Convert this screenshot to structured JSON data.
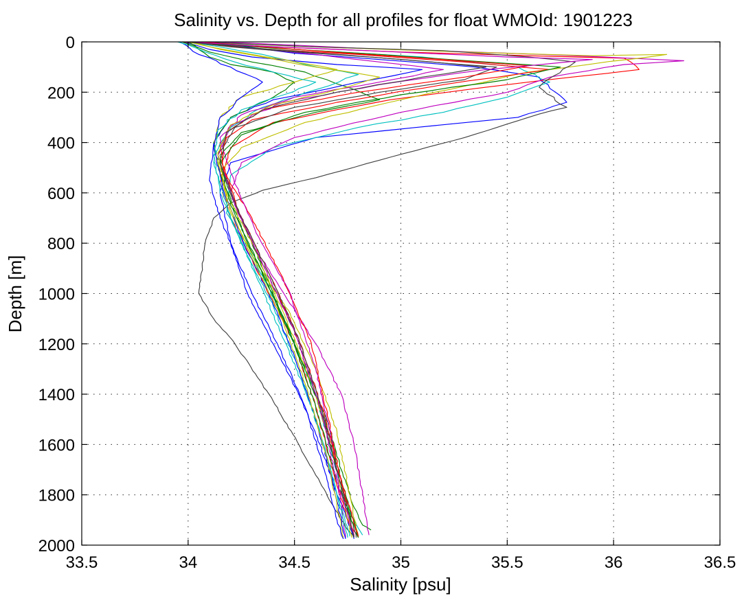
{
  "chart_data": {
    "type": "line",
    "title": "Salinity vs. Depth for all profiles for float WMOId: 1901223",
    "xlabel": "Salinity [psu]",
    "ylabel": "Depth [m]",
    "xlim": [
      33.5,
      36.5
    ],
    "ylim": [
      0,
      2000
    ],
    "y_reversed": true,
    "grid": true,
    "xticks": [
      "33.5",
      "34",
      "34.5",
      "35",
      "35.5",
      "36",
      "36.5"
    ],
    "yticks": [
      "0",
      "200",
      "400",
      "600",
      "800",
      "1000",
      "1200",
      "1400",
      "1600",
      "1800",
      "2000"
    ],
    "series_colors": [
      "#0000ff",
      "#008000",
      "#ff0000",
      "#00bfbf",
      "#bf00bf",
      "#bfbf00",
      "#404040"
    ],
    "series": [
      {
        "x": [
          34.0,
          34.28,
          34.5,
          34.9,
          35.35,
          35.65,
          35.7,
          35.78,
          35.55,
          34.6,
          34.2,
          34.15,
          34.2,
          34.28,
          34.4,
          34.52,
          34.62,
          34.7,
          34.75,
          34.78
        ],
        "y": [
          0,
          20,
          45,
          70,
          100,
          140,
          185,
          240,
          300,
          380,
          480,
          600,
          800,
          1000,
          1200,
          1400,
          1600,
          1800,
          1900,
          1975
        ]
      },
      {
        "x": [
          33.97,
          34.1,
          34.3,
          34.55,
          34.75,
          34.9,
          34.6,
          34.25,
          34.15,
          34.18,
          34.25,
          34.35,
          34.45,
          34.55,
          34.65,
          34.72,
          34.78,
          34.82,
          34.86
        ],
        "y": [
          0,
          40,
          80,
          120,
          180,
          230,
          280,
          360,
          450,
          560,
          700,
          900,
          1100,
          1300,
          1500,
          1700,
          1850,
          1920,
          1940
        ]
      },
      {
        "x": [
          34.0,
          34.4,
          35.0,
          35.6,
          36.05,
          36.12,
          35.5,
          34.95,
          34.4,
          34.2,
          34.15,
          34.2,
          34.35,
          34.5,
          34.6,
          34.68,
          34.75,
          34.8
        ],
        "y": [
          0,
          20,
          40,
          55,
          65,
          110,
          170,
          230,
          320,
          420,
          560,
          700,
          950,
          1200,
          1450,
          1700,
          1900,
          1970
        ]
      },
      {
        "x": [
          34.1,
          34.5,
          35.1,
          35.55,
          35.7,
          35.5,
          35.2,
          34.8,
          34.4,
          34.2,
          34.18,
          34.3,
          34.45,
          34.6,
          34.68,
          34.75,
          34.82
        ],
        "y": [
          0,
          30,
          60,
          100,
          160,
          220,
          280,
          340,
          420,
          530,
          680,
          850,
          1100,
          1400,
          1650,
          1850,
          1960
        ]
      },
      {
        "x": [
          34.15,
          34.8,
          35.5,
          35.95,
          36.33,
          36.05,
          35.7,
          35.5,
          35.0,
          34.5,
          34.25,
          34.2,
          34.3,
          34.45,
          34.6,
          34.72,
          34.78,
          34.82,
          34.85
        ],
        "y": [
          0,
          25,
          45,
          60,
          75,
          90,
          140,
          200,
          280,
          380,
          480,
          600,
          800,
          1000,
          1200,
          1400,
          1600,
          1800,
          1960
        ]
      },
      {
        "x": [
          34.0,
          34.6,
          35.3,
          35.9,
          36.25,
          35.6,
          35.0,
          34.55,
          34.25,
          34.15,
          34.2,
          34.32,
          34.48,
          34.6,
          34.7,
          34.76,
          34.8
        ],
        "y": [
          0,
          20,
          40,
          55,
          50,
          120,
          230,
          320,
          420,
          520,
          680,
          880,
          1080,
          1300,
          1550,
          1800,
          1970
        ]
      },
      {
        "x": [
          34.05,
          34.6,
          35.2,
          35.6,
          35.82,
          35.65,
          35.78,
          35.6,
          35.3,
          34.9,
          34.6,
          34.35,
          34.2,
          34.12,
          34.08,
          34.05,
          34.12,
          34.22,
          34.38,
          34.52,
          34.62,
          34.72,
          34.78
        ],
        "y": [
          0,
          20,
          35,
          60,
          80,
          180,
          260,
          300,
          380,
          470,
          540,
          590,
          640,
          700,
          800,
          1000,
          1100,
          1200,
          1400,
          1600,
          1750,
          1900,
          1970
        ]
      },
      {
        "x": [
          33.98,
          34.1,
          34.3,
          34.7,
          35.1,
          34.8,
          34.4,
          34.2,
          34.12,
          34.1,
          34.15,
          34.3,
          34.42,
          34.55,
          34.64,
          34.7,
          34.73
        ],
        "y": [
          0,
          30,
          60,
          90,
          110,
          160,
          230,
          300,
          400,
          550,
          700,
          1000,
          1200,
          1450,
          1700,
          1900,
          1975
        ]
      },
      {
        "x": [
          34.0,
          34.05,
          34.1,
          34.2,
          34.4,
          34.5,
          34.4,
          34.2,
          34.12,
          34.15,
          34.28,
          34.42,
          34.55,
          34.66,
          34.74,
          34.8
        ],
        "y": [
          0,
          30,
          60,
          90,
          120,
          160,
          220,
          300,
          400,
          520,
          800,
          1050,
          1300,
          1550,
          1800,
          1970
        ]
      },
      {
        "x": [
          33.98,
          34.3,
          34.8,
          35.3,
          35.7,
          35.2,
          34.7,
          34.3,
          34.15,
          34.17,
          34.3,
          34.45,
          34.58,
          34.66,
          34.72,
          34.78
        ],
        "y": [
          0,
          25,
          50,
          80,
          110,
          170,
          240,
          310,
          400,
          520,
          700,
          950,
          1200,
          1500,
          1750,
          1960
        ]
      },
      {
        "x": [
          34.0,
          34.15,
          34.35,
          34.55,
          34.8,
          34.6,
          34.35,
          34.2,
          34.12,
          34.15,
          34.28,
          34.4,
          34.52,
          34.62,
          34.7,
          34.76
        ],
        "y": [
          0,
          20,
          50,
          90,
          130,
          190,
          260,
          340,
          450,
          600,
          850,
          1050,
          1300,
          1550,
          1800,
          1965
        ]
      },
      {
        "x": [
          34.1,
          34.3,
          34.6,
          34.9,
          35.2,
          34.9,
          34.5,
          34.25,
          34.15,
          34.2,
          34.32,
          34.48,
          34.6,
          34.68,
          34.74
        ],
        "y": [
          0,
          25,
          50,
          80,
          110,
          160,
          220,
          290,
          380,
          520,
          760,
          1000,
          1300,
          1600,
          1970
        ]
      },
      {
        "x": [
          34.0,
          34.2,
          34.45,
          34.7,
          34.5,
          34.25,
          34.15,
          34.12,
          34.18,
          34.3,
          34.46,
          34.6,
          34.7,
          34.77
        ],
        "y": [
          0,
          35,
          70,
          110,
          160,
          220,
          300,
          420,
          600,
          800,
          1100,
          1400,
          1700,
          1970
        ]
      },
      {
        "x": [
          34.02,
          34.25,
          34.55,
          35.0,
          35.45,
          35.3,
          34.9,
          34.5,
          34.22,
          34.14,
          34.22,
          34.36,
          34.5,
          34.62,
          34.7,
          34.79
        ],
        "y": [
          0,
          20,
          40,
          70,
          100,
          150,
          200,
          260,
          340,
          450,
          650,
          900,
          1150,
          1450,
          1700,
          1970
        ]
      },
      {
        "x": [
          33.96,
          34.05,
          34.2,
          34.35,
          34.25,
          34.15,
          34.12,
          34.17,
          34.26,
          34.38,
          34.5,
          34.6,
          34.68,
          34.74
        ],
        "y": [
          0,
          50,
          100,
          160,
          220,
          300,
          420,
          600,
          800,
          1000,
          1250,
          1500,
          1750,
          1975
        ]
      },
      {
        "x": [
          34.0,
          34.4,
          34.9,
          35.4,
          35.75,
          35.5,
          35.0,
          34.55,
          34.25,
          34.15,
          34.2,
          34.34,
          34.48,
          34.6,
          34.7,
          34.8
        ],
        "y": [
          0,
          25,
          50,
          80,
          100,
          150,
          210,
          280,
          370,
          480,
          650,
          900,
          1150,
          1450,
          1750,
          1970
        ]
      },
      {
        "x": [
          34.05,
          34.35,
          34.75,
          35.2,
          35.6,
          35.3,
          34.8,
          34.35,
          34.18,
          34.16,
          34.24,
          34.38,
          34.52,
          34.64,
          34.72,
          34.8
        ],
        "y": [
          0,
          20,
          45,
          70,
          95,
          140,
          200,
          270,
          360,
          480,
          680,
          920,
          1180,
          1480,
          1750,
          1965
        ]
      },
      {
        "x": [
          33.95,
          34.08,
          34.22,
          34.4,
          34.6,
          34.45,
          34.25,
          34.14,
          34.12,
          34.2,
          34.33,
          34.46,
          34.58,
          34.67,
          34.75
        ],
        "y": [
          0,
          40,
          80,
          120,
          160,
          210,
          270,
          350,
          480,
          700,
          950,
          1200,
          1450,
          1700,
          1970
        ]
      },
      {
        "x": [
          34.0,
          34.3,
          34.7,
          35.1,
          35.5,
          35.9,
          35.4,
          34.9,
          34.45,
          34.2,
          34.14,
          34.22,
          34.36,
          34.5,
          34.62,
          34.7,
          34.78
        ],
        "y": [
          0,
          15,
          30,
          45,
          60,
          70,
          110,
          170,
          240,
          330,
          450,
          650,
          900,
          1150,
          1450,
          1750,
          1965
        ]
      },
      {
        "x": [
          34.02,
          34.15,
          34.35,
          34.6,
          34.9,
          34.7,
          34.4,
          34.2,
          34.14,
          34.18,
          34.3,
          34.44,
          34.56,
          34.66,
          34.73
        ],
        "y": [
          0,
          30,
          60,
          100,
          140,
          190,
          250,
          330,
          440,
          620,
          860,
          1100,
          1380,
          1680,
          1970
        ]
      },
      {
        "x": [
          34.0,
          34.2,
          34.5,
          34.85,
          35.15,
          35.4,
          35.1,
          34.7,
          34.35,
          34.18,
          34.15,
          34.24,
          34.38,
          34.52,
          34.63,
          34.71,
          34.78
        ],
        "y": [
          0,
          20,
          40,
          60,
          80,
          100,
          140,
          200,
          270,
          360,
          480,
          680,
          920,
          1180,
          1460,
          1740,
          1968
        ]
      }
    ]
  }
}
